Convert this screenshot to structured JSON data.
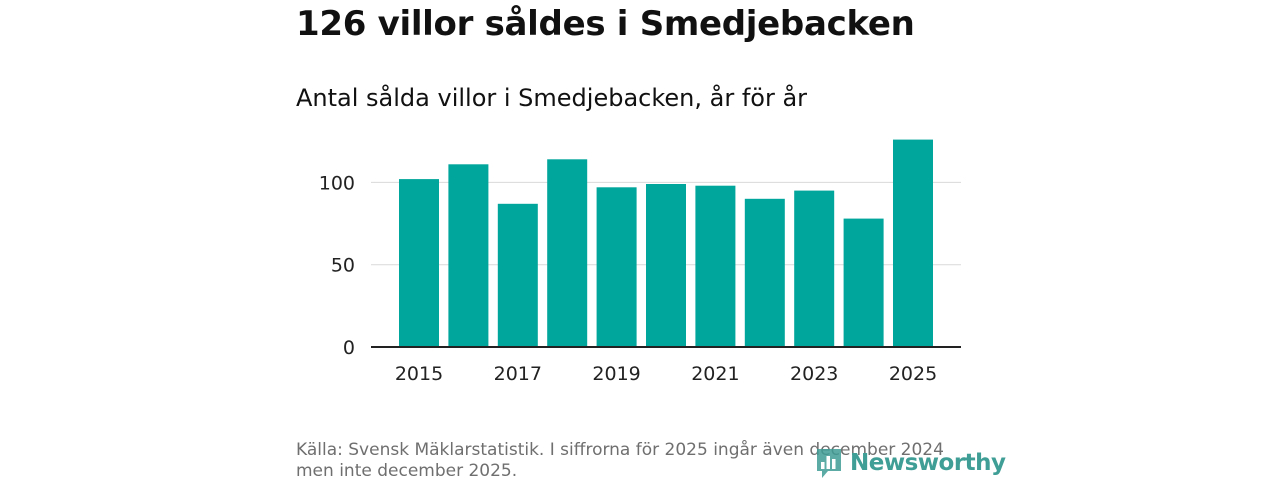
{
  "header": {
    "title": "126 villor såldes i Smedjebacken",
    "subtitle": "Antal sålda villor i Smedjebacken, år för år"
  },
  "chart_data": {
    "type": "bar",
    "title": "Antal sålda villor i Smedjebacken, år för år",
    "xlabel": "",
    "ylabel": "",
    "categories": [
      "2015",
      "2016",
      "2017",
      "2018",
      "2019",
      "2020",
      "2021",
      "2022",
      "2023",
      "2024",
      "2025"
    ],
    "values": [
      102,
      111,
      87,
      114,
      97,
      99,
      98,
      90,
      95,
      78,
      126
    ],
    "x_tick_labels": [
      "2015",
      "2017",
      "2019",
      "2021",
      "2023",
      "2025"
    ],
    "y_ticks": [
      0,
      50,
      100
    ],
    "ylim": [
      0,
      130
    ],
    "grid": true,
    "bar_color": "#00a59b"
  },
  "footer": {
    "source": "Källa: Svensk Mäklarstatistik. I siffrorna för 2025 ingår även december 2024 men inte december 2025."
  },
  "branding": {
    "logo_text": "Newsworthy",
    "logo_icon": "bar-chart-speech-bubble-icon",
    "logo_color": "#3f9e95"
  }
}
